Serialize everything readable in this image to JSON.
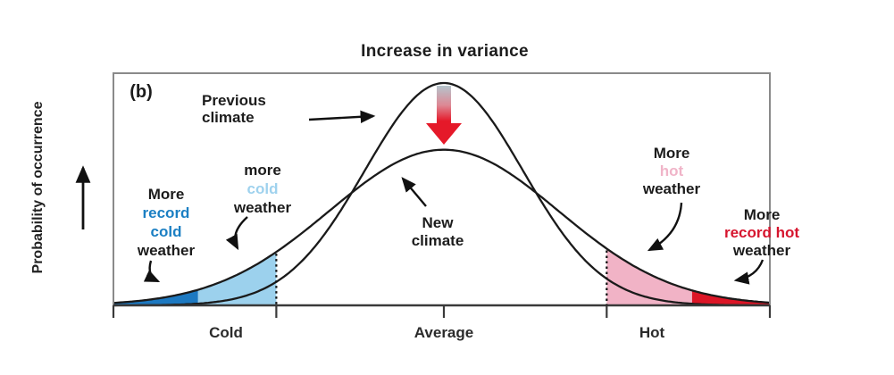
{
  "panel_label": "(b)",
  "chart_data": {
    "type": "area",
    "title": "Increase in variance",
    "xlabel": "",
    "ylabel": "Probability of occurrence",
    "x_categories": [
      "Cold",
      "Average",
      "Hot"
    ],
    "curves": [
      {
        "name": "Previous climate",
        "mean": 0,
        "sigma": 1.0,
        "peak": 1.0
      },
      {
        "name": "New climate",
        "mean": 0,
        "sigma": 1.45,
        "peak": 0.7
      }
    ],
    "thresholds_sigma": {
      "cold": -2.12,
      "hot": 2.06,
      "record_cold": -3.11,
      "record_hot": 3.14
    },
    "regions": [
      {
        "name": "more-record-cold-area",
        "from": -4.19,
        "to": -3.11,
        "color": "#1d79c1",
        "label": "More record cold weather"
      },
      {
        "name": "more-cold-area",
        "from": -3.11,
        "to": -2.12,
        "color": "#9cd1ed",
        "label": "more cold weather"
      },
      {
        "name": "more-hot-area",
        "from": 2.06,
        "to": 3.14,
        "color": "#f1b3c6",
        "label": "More hot weather"
      },
      {
        "name": "more-record-hot-area",
        "from": 3.14,
        "to": 4.13,
        "color": "#dc1526",
        "label": "More record hot weather"
      }
    ],
    "legend": "none",
    "grid": "off"
  },
  "annotations": {
    "previous_climate": {
      "line1": "Previous",
      "line2": "climate"
    },
    "new_climate": {
      "line1": "New",
      "line2": "climate"
    },
    "more_cold": {
      "line1": "more",
      "line2": "cold",
      "line3": "weather"
    },
    "more_record_cold": {
      "line1": "More",
      "line2": "record",
      "line3": "cold",
      "line4": "weather"
    },
    "more_hot": {
      "line1": "More",
      "line2": "hot",
      "line3": "weather"
    },
    "more_record_hot": {
      "line1": "More",
      "line2": "record hot",
      "line3": "weather"
    }
  },
  "colors": {
    "record_cold_text": "#1b7fc3",
    "cold_text": "#9fd2ee",
    "hot_text": "#f0b4c8",
    "record_hot_text": "#d6152e",
    "curve_stroke": "#1a1a1a",
    "down_arrow_top": "#b5c5cd",
    "down_arrow_mid": "#dd8894",
    "down_arrow_bottom": "#e51929"
  }
}
